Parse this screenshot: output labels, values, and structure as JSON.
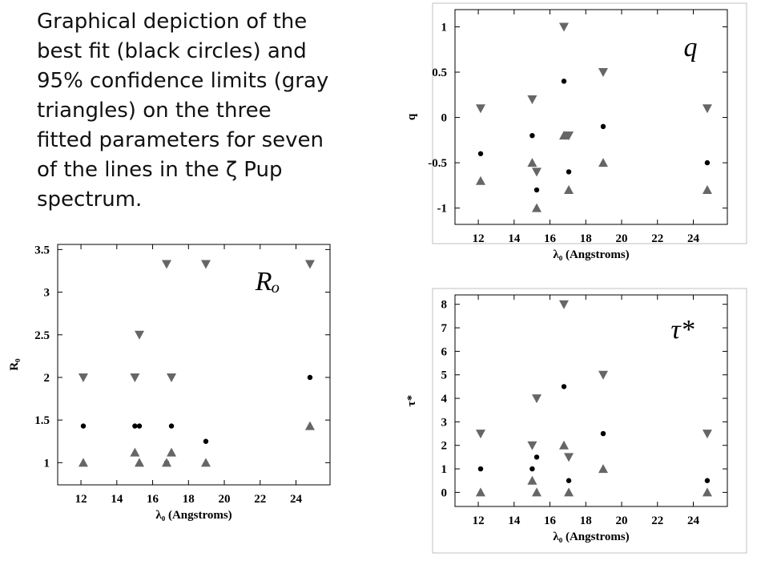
{
  "caption": [
    "Graphical depiction of the",
    "best fit (black circles) and",
    "95% confidence limits (gray",
    "triangles) on the three",
    "fitted parameters for seven",
    "of the lines in the ζ Pup",
    "spectrum."
  ],
  "chart_data": [
    {
      "type": "scatter",
      "annotation": "q",
      "y_label": "q",
      "x_label": "λ₀ (Angstroms)",
      "x": [
        12.13,
        15.01,
        15.26,
        16.78,
        17.05,
        18.97,
        24.78
      ],
      "series": [
        {
          "marker": "triangle-down",
          "color": "#666666",
          "values": [
            0.1,
            0.2,
            -0.6,
            1.0,
            -0.2,
            0.5,
            0.1
          ]
        },
        {
          "marker": "circle",
          "color": "#000000",
          "values": [
            -0.4,
            -0.2,
            -0.8,
            0.4,
            -0.6,
            -0.1,
            -0.5
          ]
        },
        {
          "marker": "triangle-up",
          "color": "#666666",
          "values": [
            -0.7,
            -0.5,
            -1.0,
            -0.2,
            -0.8,
            -0.5,
            -0.8
          ]
        }
      ],
      "xlim": [
        10.7,
        25.9
      ],
      "xticks": [
        12,
        14,
        16,
        18,
        20,
        22,
        24
      ],
      "ylim": [
        -1.18,
        1.19
      ],
      "yticks": [
        1,
        0.5,
        0,
        -0.5,
        -1
      ]
    },
    {
      "type": "scatter",
      "annotation": "Rₒ",
      "y_label": "R₀",
      "x_label": "λ₀ (Angstroms)",
      "x": [
        12.13,
        15.01,
        15.26,
        16.78,
        17.05,
        18.97,
        24.78
      ],
      "series": [
        {
          "marker": "triangle-down",
          "color": "#666666",
          "values": [
            2.0,
            2.0,
            2.5,
            3.33,
            2.0,
            3.33,
            3.33
          ]
        },
        {
          "marker": "circle",
          "color": "#000000",
          "values": [
            1.43,
            1.43,
            1.43,
            1.0,
            1.43,
            1.25,
            2.0
          ]
        },
        {
          "marker": "triangle-up",
          "color": "#666666",
          "values": [
            1.0,
            1.12,
            1.0,
            1.0,
            1.12,
            1.0,
            1.43
          ]
        }
      ],
      "xlim": [
        10.7,
        25.9
      ],
      "xticks": [
        12,
        14,
        16,
        18,
        20,
        22,
        24
      ],
      "ylim": [
        0.74,
        3.56
      ],
      "yticks": [
        3.5,
        3,
        2.5,
        2,
        1.5,
        1
      ]
    },
    {
      "type": "scatter",
      "annotation": "τ*",
      "y_label": "τ*",
      "x_label": "λ₀ (Angstroms)",
      "x": [
        12.13,
        15.01,
        15.26,
        16.78,
        17.05,
        18.97,
        24.78
      ],
      "series": [
        {
          "marker": "triangle-down",
          "color": "#666666",
          "values": [
            2.5,
            2.0,
            4.0,
            8.0,
            1.5,
            5.0,
            2.5
          ]
        },
        {
          "marker": "circle",
          "color": "#000000",
          "values": [
            1.0,
            1.0,
            1.5,
            4.5,
            0.5,
            2.5,
            0.5
          ]
        },
        {
          "marker": "triangle-up",
          "color": "#666666",
          "values": [
            0,
            0.5,
            0,
            2.0,
            0,
            1.0,
            0
          ]
        }
      ],
      "xlim": [
        10.7,
        25.9
      ],
      "xticks": [
        12,
        14,
        16,
        18,
        20,
        22,
        24
      ],
      "ylim": [
        -0.6,
        8.4
      ],
      "yticks": [
        8,
        7,
        6,
        5,
        4,
        3,
        2,
        1,
        0
      ]
    }
  ]
}
